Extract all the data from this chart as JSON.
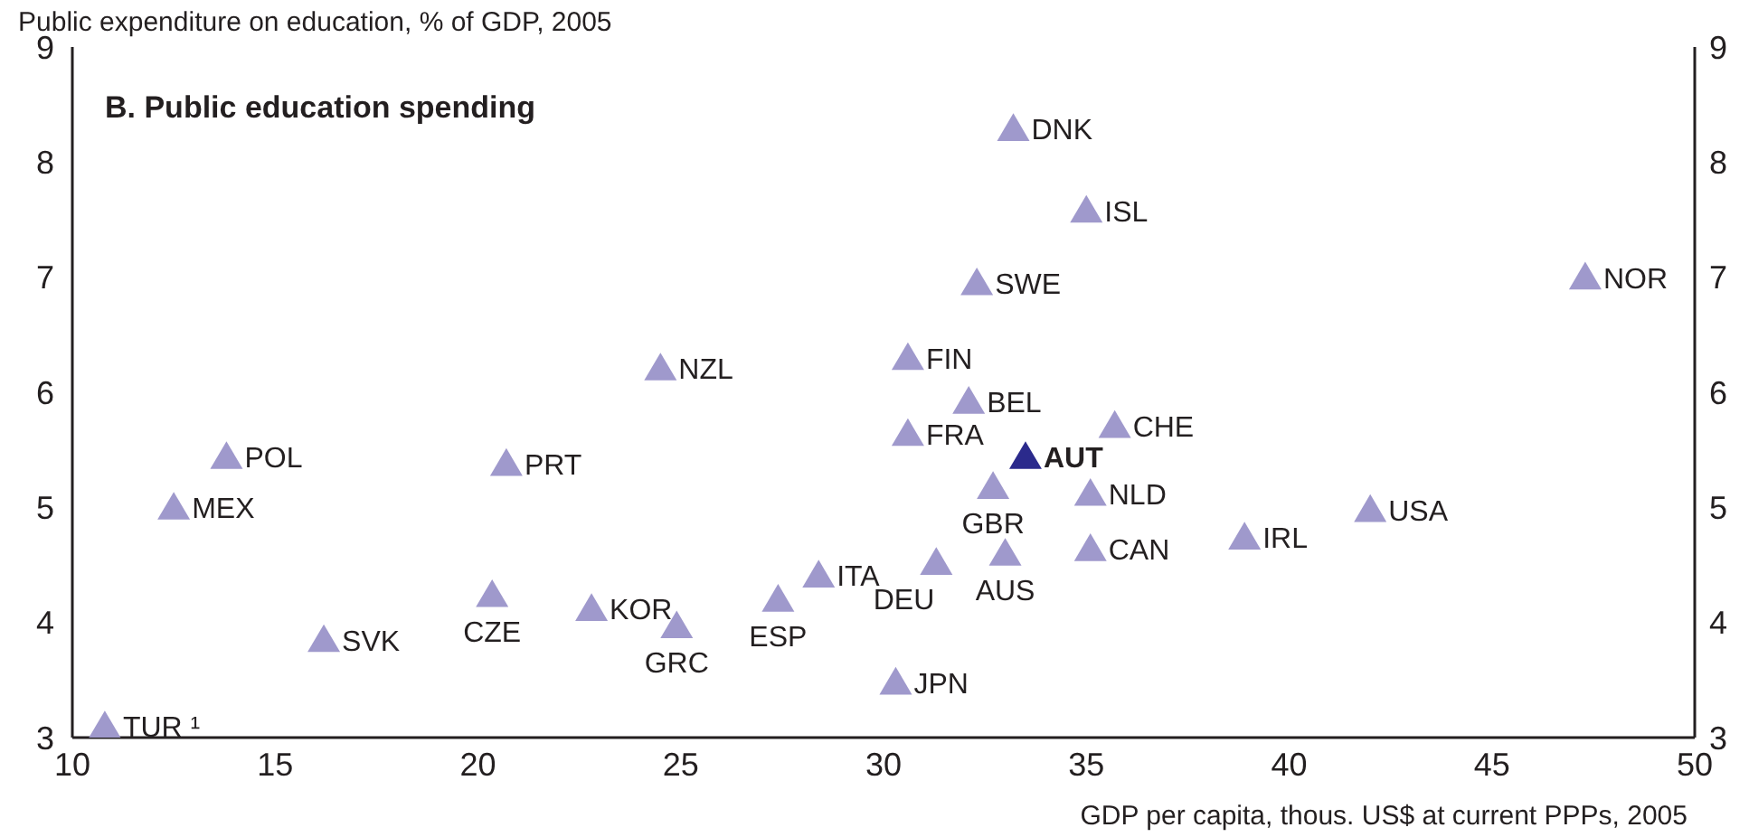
{
  "chart_data": {
    "type": "scatter",
    "title": "B. Public education spending",
    "ylabel": "Public expenditure on education, % of GDP, 2005",
    "xlabel": "GDP per capita, thous. US$ at current PPPs, 2005",
    "marker": "triangle",
    "legend": false,
    "grid": false,
    "xlim": [
      10,
      50
    ],
    "xticks": [
      10,
      15,
      20,
      25,
      30,
      35,
      40,
      45,
      50
    ],
    "ylim": [
      3,
      9
    ],
    "yticks": [
      3,
      4,
      5,
      6,
      7,
      8,
      9
    ],
    "y2lim": [
      3,
      9
    ],
    "y2ticks": [
      3,
      4,
      5,
      6,
      7,
      8,
      9
    ],
    "series": [
      {
        "name": "TUR ¹",
        "color": "#9f99cc",
        "x": [
          10.8
        ],
        "values": [
          3.1
        ]
      },
      {
        "name": "MEX",
        "color": "#9f99cc",
        "x": [
          12.5
        ],
        "values": [
          5.0
        ]
      },
      {
        "name": "POL",
        "color": "#9f99cc",
        "x": [
          13.8
        ],
        "values": [
          5.44
        ]
      },
      {
        "name": "SVK",
        "color": "#9f99cc",
        "x": [
          16.2
        ],
        "values": [
          3.85
        ]
      },
      {
        "name": "CZE",
        "color": "#9f99cc",
        "x": [
          20.35
        ],
        "values": [
          4.24
        ]
      },
      {
        "name": "PRT",
        "color": "#9f99cc",
        "x": [
          20.7
        ],
        "values": [
          5.38
        ]
      },
      {
        "name": "KOR",
        "color": "#9f99cc",
        "x": [
          22.8
        ],
        "values": [
          4.12
        ]
      },
      {
        "name": "GRC",
        "color": "#9f99cc",
        "x": [
          24.9
        ],
        "values": [
          3.97
        ]
      },
      {
        "name": "NZL",
        "color": "#9f99cc",
        "x": [
          24.5
        ],
        "values": [
          6.21
        ]
      },
      {
        "name": "ESP",
        "color": "#9f99cc",
        "x": [
          27.4
        ],
        "values": [
          4.2
        ]
      },
      {
        "name": "ITA",
        "color": "#9f99cc",
        "x": [
          28.4
        ],
        "values": [
          4.41
        ]
      },
      {
        "name": "JPN",
        "color": "#9f99cc",
        "x": [
          30.3
        ],
        "values": [
          3.48
        ]
      },
      {
        "name": "FIN",
        "color": "#9f99cc",
        "x": [
          30.6
        ],
        "values": [
          6.3
        ]
      },
      {
        "name": "FRA",
        "color": "#9f99cc",
        "x": [
          30.6
        ],
        "values": [
          5.64
        ]
      },
      {
        "name": "DEU",
        "color": "#9f99cc",
        "x": [
          31.3
        ],
        "values": [
          4.52
        ]
      },
      {
        "name": "BEL",
        "color": "#9f99cc",
        "x": [
          32.1
        ],
        "values": [
          5.92
        ]
      },
      {
        "name": "GBR",
        "color": "#9f99cc",
        "x": [
          32.7
        ],
        "values": [
          5.18
        ]
      },
      {
        "name": "SWE",
        "color": "#9f99cc",
        "x": [
          32.3
        ],
        "values": [
          6.95
        ]
      },
      {
        "name": "AUS",
        "color": "#9f99cc",
        "x": [
          33.0
        ],
        "values": [
          4.6
        ]
      },
      {
        "name": "AUT",
        "color": "#2b2a8c",
        "x": [
          33.5
        ],
        "values": [
          5.44
        ]
      },
      {
        "name": "DNK",
        "color": "#9f99cc",
        "x": [
          33.2
        ],
        "values": [
          8.29
        ]
      },
      {
        "name": "ISL",
        "color": "#9f99cc",
        "x": [
          35.0
        ],
        "values": [
          7.58
        ]
      },
      {
        "name": "NLD",
        "color": "#9f99cc",
        "x": [
          35.1
        ],
        "values": [
          5.12
        ]
      },
      {
        "name": "CAN",
        "color": "#9f99cc",
        "x": [
          35.1
        ],
        "values": [
          4.64
        ]
      },
      {
        "name": "CHE",
        "color": "#9f99cc",
        "x": [
          35.7
        ],
        "values": [
          5.71
        ]
      },
      {
        "name": "IRL",
        "color": "#9f99cc",
        "x": [
          38.9
        ],
        "values": [
          4.74
        ]
      },
      {
        "name": "USA",
        "color": "#9f99cc",
        "x": [
          42.0
        ],
        "values": [
          4.98
        ]
      },
      {
        "name": "NOR",
        "color": "#9f99cc",
        "x": [
          47.3
        ],
        "values": [
          7.0
        ]
      }
    ]
  }
}
